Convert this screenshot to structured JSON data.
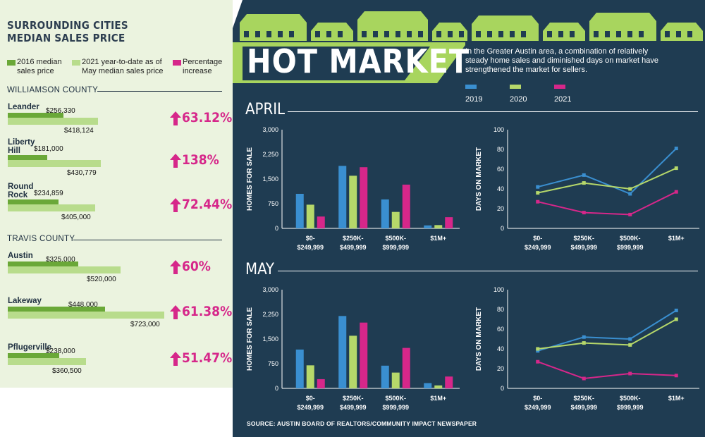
{
  "left": {
    "title_line1": "SURROUNDING CITIES",
    "title_line2": "MEDIAN SALES PRICE",
    "legend": [
      {
        "line1": "2016 median",
        "line2": "sales price",
        "color": "#6aa838"
      },
      {
        "line1": "2021 year-to-date as of",
        "line2": "May median sales price",
        "color": "#b8dc8c"
      },
      {
        "line1": "Percentage",
        "line2": "increase",
        "color": "#d6278a"
      }
    ],
    "williamson": "WILLIAMSON COUNTY",
    "travis": "TRAVIS COUNTY",
    "cities": [
      {
        "name1": "Leander",
        "name2": "",
        "v2016": "$256,330",
        "v2021": "$418,124",
        "n2016": 256330,
        "n2021": 418124,
        "pct": "63.12%"
      },
      {
        "name1": "Liberty",
        "name2": "Hill",
        "v2016": "$181,000",
        "v2021": "$430,779",
        "n2016": 181000,
        "n2021": 430779,
        "pct": "138%"
      },
      {
        "name1": "Round",
        "name2": "Rock",
        "v2016": "$234,859",
        "v2021": "$405,000",
        "n2016": 234859,
        "n2021": 405000,
        "pct": "72.44%"
      },
      {
        "name1": "Austin",
        "name2": "",
        "v2016": "$325,000",
        "v2021": "$520,000",
        "n2016": 325000,
        "n2021": 520000,
        "pct": "60%"
      },
      {
        "name1": "Lakeway",
        "name2": "",
        "v2016": "$448,000",
        "v2021": "$723,000",
        "n2016": 448000,
        "n2021": 723000,
        "pct": "61.38%"
      },
      {
        "name1": "Pflugerville",
        "name2": "",
        "v2016": "$238,000",
        "v2021": "$360,500",
        "n2016": 238000,
        "n2021": 360500,
        "pct": "51.47%"
      }
    ]
  },
  "right": {
    "title": "HOT MARKET",
    "intro_line1": "In the Greater Austin area, a combination of relatively",
    "intro_line2": "steady home sales and diminished days on market have",
    "intro_line3": "strengthened the market for sellers.",
    "series_legend": [
      {
        "name": "2019",
        "color": "#3a8fd0"
      },
      {
        "name": "2020",
        "color": "#b6d86a"
      },
      {
        "name": "2021",
        "color": "#d6278a"
      }
    ],
    "month_april": "APRIL",
    "month_may": "MAY",
    "homes_ylabel": "HOMES FOR SALE",
    "days_ylabel": "DAYS ON MARKET",
    "source": "SOURCE: AUSTIN BOARD OF REALTORS/COMMUNITY IMPACT NEWSPAPER"
  },
  "chart_data": [
    {
      "type": "bar",
      "title": "",
      "ylabel": "HOMES FOR SALE",
      "ylim": [
        0,
        3000
      ],
      "yticks": [
        "0",
        "750",
        "1,500",
        "2,250",
        "3,000"
      ],
      "categories": [
        [
          "$0-",
          "$249,999"
        ],
        [
          "$250K-",
          "$499,999"
        ],
        [
          "$500K-",
          "$999,999"
        ],
        [
          "$1M+",
          ""
        ]
      ],
      "series": [
        {
          "name": "2019",
          "values": [
            1050,
            1900,
            880,
            90
          ]
        },
        {
          "name": "2020",
          "values": [
            720,
            1600,
            500,
            100
          ]
        },
        {
          "name": "2021",
          "values": [
            360,
            1860,
            1330,
            340
          ]
        }
      ]
    },
    {
      "type": "line",
      "title": "",
      "ylabel": "DAYS ON MARKET",
      "ylim": [
        0,
        100
      ],
      "yticks": [
        "0",
        "20",
        "40",
        "60",
        "80",
        "100"
      ],
      "categories": [
        [
          "$0-",
          "$249,999"
        ],
        [
          "$250K-",
          "$499,999"
        ],
        [
          "$500K-",
          "$999,999"
        ],
        [
          "$1M+",
          ""
        ]
      ],
      "series": [
        {
          "name": "2019",
          "values": [
            42,
            54,
            35,
            81
          ]
        },
        {
          "name": "2020",
          "values": [
            36,
            46,
            40,
            61
          ]
        },
        {
          "name": "2021",
          "values": [
            27,
            16,
            14,
            37
          ]
        }
      ]
    },
    {
      "type": "bar",
      "title": "",
      "ylabel": "HOMES FOR SALE",
      "ylim": [
        0,
        3000
      ],
      "yticks": [
        "0",
        "750",
        "1,500",
        "2,250",
        "3,000"
      ],
      "categories": [
        [
          "$0-",
          "$249,999"
        ],
        [
          "$250K-",
          "$499,999"
        ],
        [
          "$500K-",
          "$999,999"
        ],
        [
          "$1M+",
          ""
        ]
      ],
      "series": [
        {
          "name": "2019",
          "values": [
            1180,
            2200,
            690,
            160
          ]
        },
        {
          "name": "2020",
          "values": [
            700,
            1600,
            480,
            90
          ]
        },
        {
          "name": "2021",
          "values": [
            280,
            2000,
            1230,
            360
          ]
        }
      ]
    },
    {
      "type": "line",
      "title": "",
      "ylabel": "DAYS ON MARKET",
      "ylim": [
        0,
        100
      ],
      "yticks": [
        "0",
        "20",
        "40",
        "60",
        "80",
        "100"
      ],
      "categories": [
        [
          "$0-",
          "$249,999"
        ],
        [
          "$250K-",
          "$499,999"
        ],
        [
          "$500K-",
          "$999,999"
        ],
        [
          "$1M+",
          ""
        ]
      ],
      "series": [
        {
          "name": "2019",
          "values": [
            38,
            52,
            50,
            79
          ]
        },
        {
          "name": "2020",
          "values": [
            40,
            46,
            44,
            70
          ]
        },
        {
          "name": "2021",
          "values": [
            27,
            10,
            15,
            13
          ]
        }
      ]
    }
  ]
}
